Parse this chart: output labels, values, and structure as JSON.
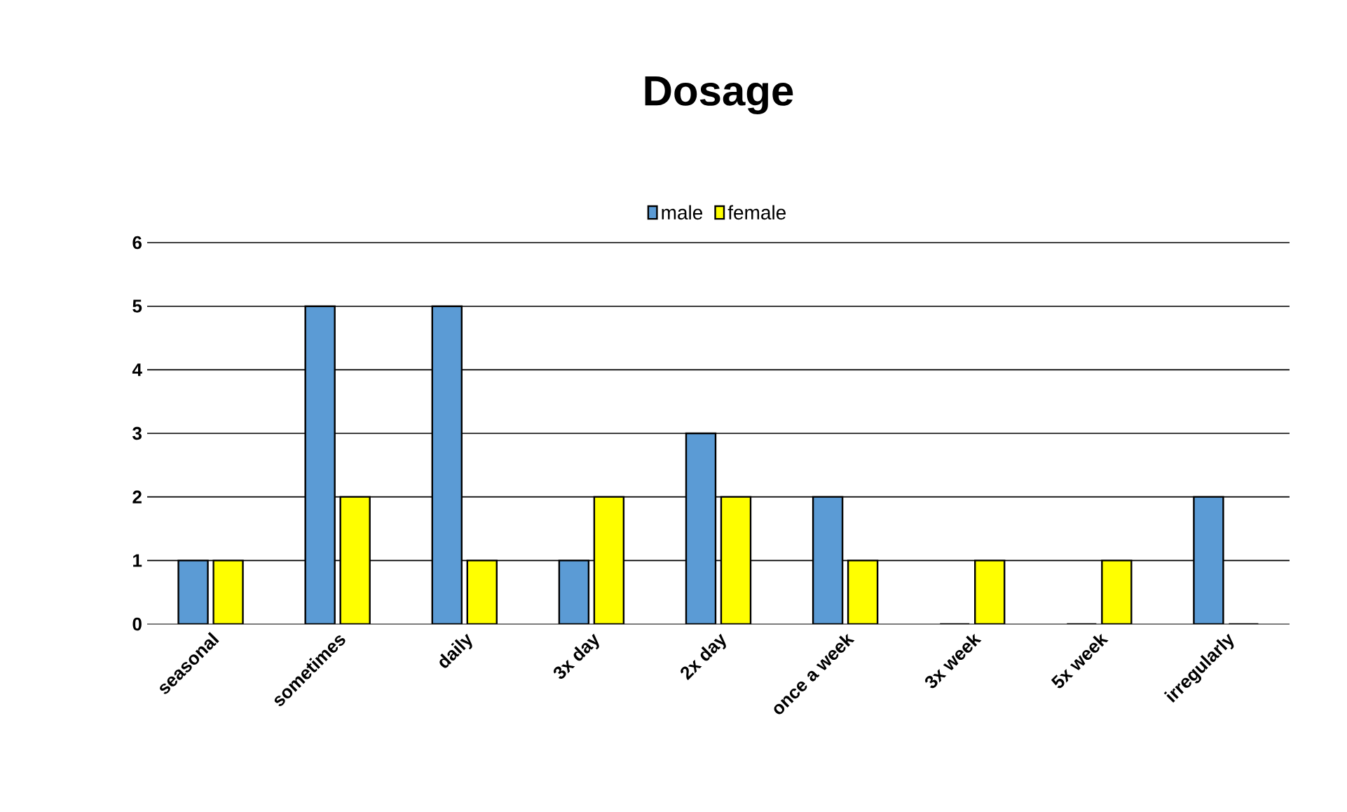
{
  "chart_data": {
    "type": "bar",
    "title": "Dosage",
    "categories": [
      "seasonal",
      "sometimes",
      "daily",
      "3x day",
      "2x day",
      "once a week",
      "3x week",
      "5x week",
      "irregularly"
    ],
    "series": [
      {
        "name": "male",
        "color": "#5b9bd5",
        "values": [
          1,
          5,
          5,
          1,
          3,
          2,
          0,
          0,
          2
        ]
      },
      {
        "name": "female",
        "color": "#ffff00",
        "values": [
          1,
          2,
          1,
          2,
          2,
          1,
          1,
          1,
          0
        ]
      }
    ],
    "ylim": [
      0,
      6
    ],
    "yticks": [
      0,
      1,
      2,
      3,
      4,
      5,
      6
    ],
    "grid": "y",
    "legend": "top"
  }
}
